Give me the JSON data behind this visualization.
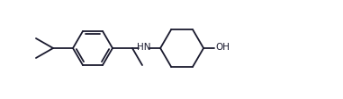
{
  "background_color": "#ffffff",
  "line_color": "#1a1a2e",
  "line_width": 1.3,
  "font_size": 7.5,
  "figsize": [
    3.81,
    1.11
  ],
  "dpi": 100
}
